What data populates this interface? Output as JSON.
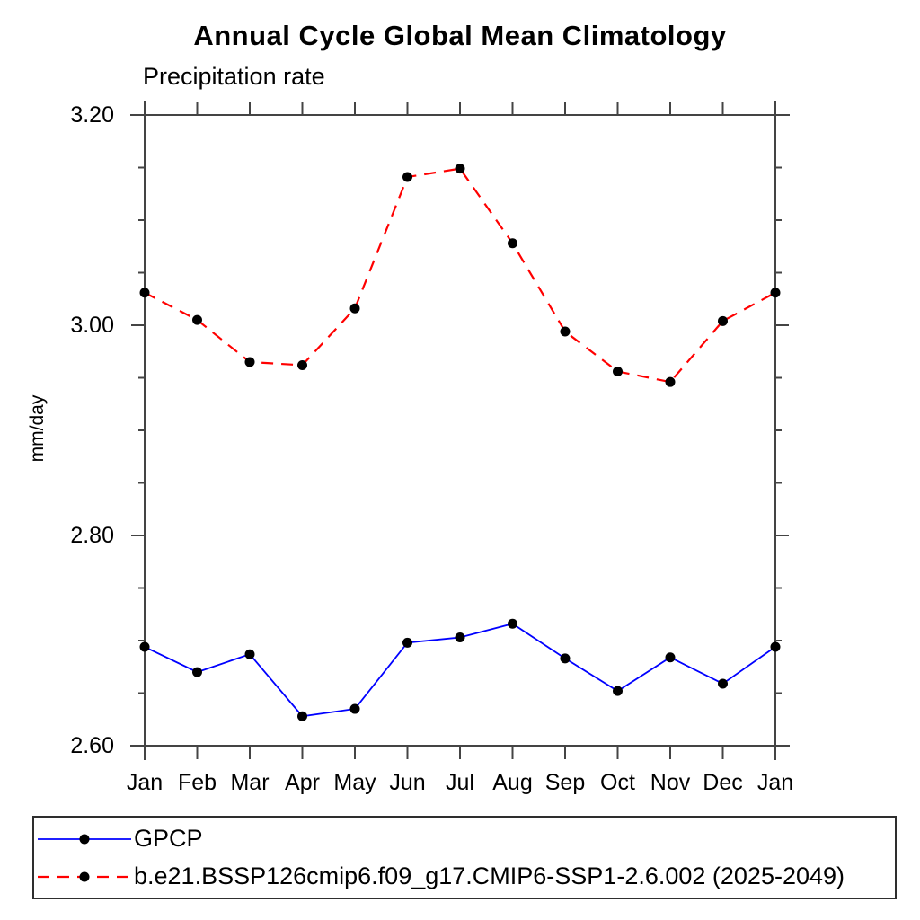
{
  "title": "Annual Cycle Global Mean Climatology",
  "subtitle": "Precipitation rate",
  "ylabel": "mm/day",
  "chart_data": {
    "type": "line",
    "categories": [
      "Jan",
      "Feb",
      "Mar",
      "Apr",
      "May",
      "Jun",
      "Jul",
      "Aug",
      "Sep",
      "Oct",
      "Nov",
      "Dec",
      "Jan"
    ],
    "series": [
      {
        "name": "GPCP",
        "color": "#0000ff",
        "line_style": "solid",
        "marker": "filled-circle",
        "marker_color": "#000000",
        "values": [
          2.694,
          2.67,
          2.687,
          2.628,
          2.635,
          2.698,
          2.703,
          2.716,
          2.683,
          2.652,
          2.684,
          2.659,
          2.694
        ]
      },
      {
        "name": "b.e21.BSSP126cmip6.f09_g17.CMIP6-SSP1-2.6.002 (2025-2049)",
        "color": "#ff0000",
        "line_style": "dashed",
        "marker": "filled-circle",
        "marker_color": "#000000",
        "values": [
          3.031,
          3.005,
          2.965,
          2.962,
          3.016,
          3.141,
          3.149,
          3.078,
          2.994,
          2.956,
          2.946,
          3.004,
          3.031
        ]
      }
    ],
    "ylim": [
      2.6,
      3.2
    ],
    "ytick_labels": [
      "3.20",
      "3.00",
      "2.80",
      "2.60"
    ],
    "yticks_major": [
      3.2,
      3.0,
      2.8,
      2.6
    ],
    "yminor_step": 0.05,
    "grid": false,
    "legend_position": "bottom",
    "axis_color": "#444444"
  }
}
